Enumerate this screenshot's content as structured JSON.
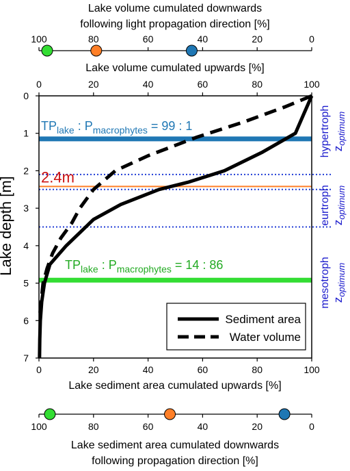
{
  "top_axis": {
    "title_line1": "Lake volume cumulated downwards",
    "title_line2": "following light propagation direction [%]",
    "ticks": [
      100,
      80,
      60,
      40,
      20,
      0
    ],
    "markers": [
      {
        "value": 97,
        "color": "#33dd33"
      },
      {
        "value": 79,
        "color": "#ff7f27"
      },
      {
        "value": 44,
        "color": "#1f77b4"
      }
    ]
  },
  "bottom_axis": {
    "title_line1": "Lake sediment area cumulated downwards",
    "title_line2": "following propagation direction [%]",
    "ticks": [
      100,
      80,
      60,
      40,
      20,
      0
    ],
    "markers": [
      {
        "value": 96,
        "color": "#33dd33"
      },
      {
        "value": 52,
        "color": "#ff7f27"
      },
      {
        "value": 10,
        "color": "#1f77b4"
      }
    ]
  },
  "chart_data": {
    "type": "line",
    "xlabel": "Lake sediment area cumulated upwards [%]",
    "x2label": "Lake volume cumulated upwards [%]",
    "ylabel": "Lake depth [m]",
    "xlim": [
      0,
      100
    ],
    "ylim": [
      7,
      0
    ],
    "xticks": [
      0,
      20,
      40,
      60,
      80,
      100
    ],
    "yticks": [
      0,
      1,
      2,
      3,
      4,
      5,
      6,
      7
    ],
    "series": [
      {
        "name": "Sediment area",
        "style": "solid",
        "color": "#000000",
        "points": [
          [
            100,
            0
          ],
          [
            97,
            0.5
          ],
          [
            94,
            1.0
          ],
          [
            82,
            1.5
          ],
          [
            68,
            2.0
          ],
          [
            55,
            2.3
          ],
          [
            44,
            2.5
          ],
          [
            30,
            2.9
          ],
          [
            20,
            3.3
          ],
          [
            10,
            4.0
          ],
          [
            4,
            4.5
          ],
          [
            2,
            5.0
          ],
          [
            1,
            5.5
          ],
          [
            0.5,
            6.0
          ],
          [
            0.3,
            6.5
          ],
          [
            0.2,
            7.0
          ]
        ]
      },
      {
        "name": "Water volume",
        "style": "dashed",
        "color": "#000000",
        "points": [
          [
            100,
            0
          ],
          [
            90,
            0.3
          ],
          [
            75,
            0.7
          ],
          [
            58,
            1.1
          ],
          [
            40,
            1.6
          ],
          [
            28,
            2.0
          ],
          [
            20,
            2.5
          ],
          [
            15,
            3.0
          ],
          [
            12,
            3.4
          ],
          [
            8,
            3.8
          ],
          [
            5,
            4.2
          ],
          [
            3,
            4.6
          ],
          [
            1.5,
            5.0
          ],
          [
            0.8,
            5.5
          ],
          [
            0.4,
            5.8
          ]
        ]
      }
    ],
    "hlines": [
      {
        "y": 1.15,
        "color": "#1f77b4",
        "style": "thick"
      },
      {
        "y": 2.1,
        "color": "#1f3bd6",
        "style": "dotted"
      },
      {
        "y": 2.42,
        "color": "#ff7f27",
        "style": "thin"
      },
      {
        "y": 2.5,
        "color": "#1f3bd6",
        "style": "dotted"
      },
      {
        "y": 3.5,
        "color": "#1f3bd6",
        "style": "dotted"
      },
      {
        "y": 4.92,
        "color": "#33dd33",
        "style": "thick"
      }
    ],
    "annotations": {
      "ratio_top": {
        "pre": "TP",
        "sub1": "lake",
        "mid": " : P",
        "sub2": "macrophytes",
        "post": " = 99 : 1",
        "color": "#1f77b4"
      },
      "ratio_bottom": {
        "pre": "TP",
        "sub1": "lake",
        "mid": " : P",
        "sub2": "macrophytes",
        "post": " = 14 : 86",
        "color": "#22aa22"
      },
      "depth_mark": {
        "text": "2.4m",
        "color": "#cc1111"
      }
    },
    "zones": [
      {
        "name": "hypertroph",
        "sub": "optimum",
        "color": "#1a1acc"
      },
      {
        "name": "eurtroph",
        "sub": "optimum",
        "color": "#1a1acc"
      },
      {
        "name": "mesotroph",
        "sub": "optimum",
        "color": "#1a1acc"
      }
    ],
    "legend": {
      "position": "bottom-right"
    }
  }
}
